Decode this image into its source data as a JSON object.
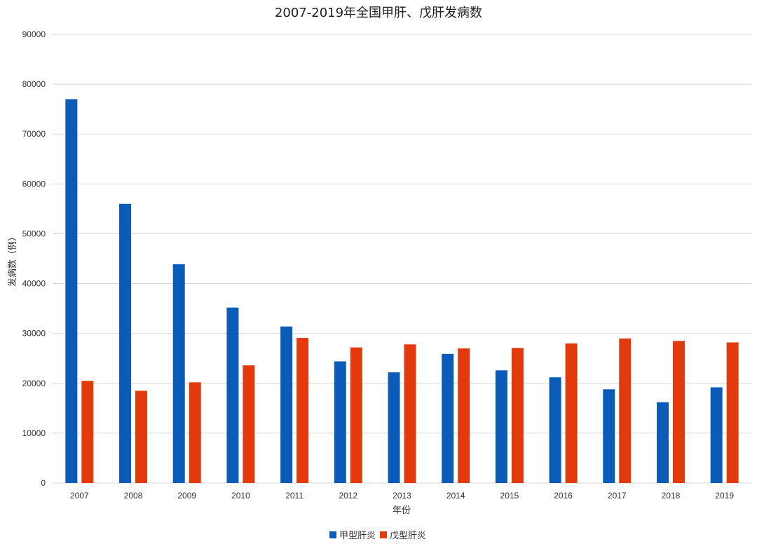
{
  "chart_data": {
    "type": "bar",
    "title": "2007-2019年全国甲肝、戊肝发病数",
    "xlabel": "年份",
    "ylabel": "发病数（例）",
    "ylim": [
      0,
      90000
    ],
    "yticks": [
      0,
      10000,
      20000,
      30000,
      40000,
      50000,
      60000,
      70000,
      80000,
      90000
    ],
    "grid": true,
    "legend_position": "bottom",
    "categories": [
      "2007",
      "2008",
      "2009",
      "2010",
      "2011",
      "2012",
      "2013",
      "2014",
      "2015",
      "2016",
      "2017",
      "2018",
      "2019"
    ],
    "series": [
      {
        "name": "甲型肝炎",
        "color": "#0a5cb8",
        "values": [
          77000,
          56000,
          43900,
          35200,
          31400,
          24400,
          22200,
          25900,
          22600,
          21200,
          18800,
          16200,
          19200
        ]
      },
      {
        "name": "戊型肝炎",
        "color": "#e23a0c",
        "values": [
          20500,
          18500,
          20200,
          23600,
          29100,
          27200,
          27800,
          27000,
          27100,
          28000,
          29000,
          28500,
          28200
        ]
      }
    ]
  }
}
